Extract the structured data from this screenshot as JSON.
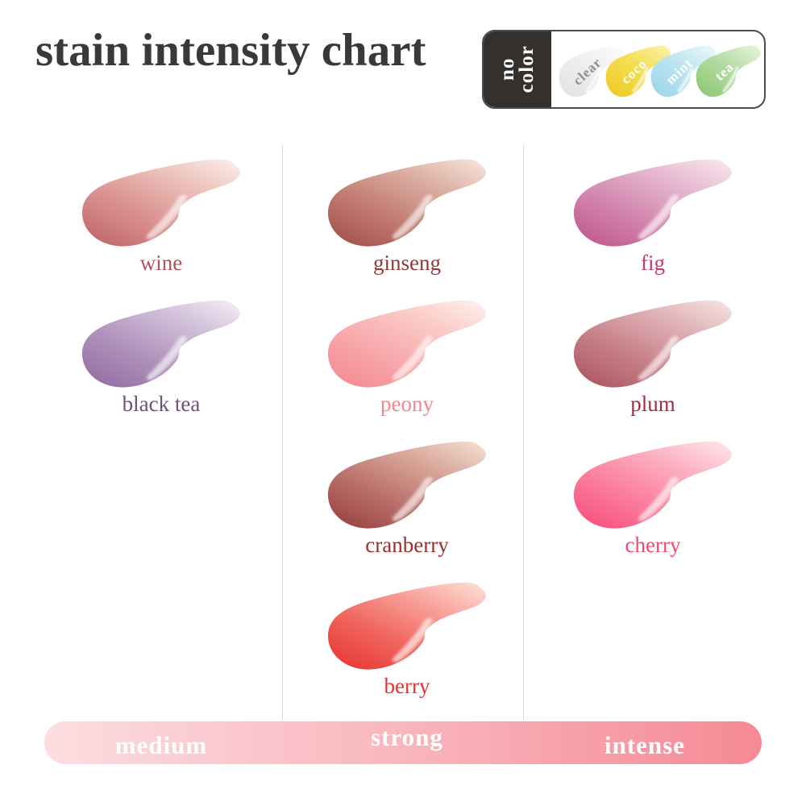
{
  "title": "stain intensity chart",
  "no_color_legend": {
    "tab_lines": [
      "no",
      "color"
    ],
    "tab_bg": "#33302e",
    "swatches": [
      {
        "name": "clear",
        "label_color": "#8f8f8f",
        "deep": "#e2e2e4",
        "mid": "#eeeef0",
        "pale": "#fbfbfc"
      },
      {
        "name": "coco",
        "label_color": "#ffffff",
        "deep": "#eec921",
        "mid": "#f4dd4e",
        "pale": "#faf0a6"
      },
      {
        "name": "mint",
        "label_color": "#ffffff",
        "deep": "#9bd5e9",
        "mid": "#bce4f0",
        "pale": "#e8f7fa"
      },
      {
        "name": "tea",
        "label_color": "#ffffff",
        "deep": "#8cc673",
        "mid": "#b2dba0",
        "pale": "#e3f2d8"
      }
    ]
  },
  "columns": [
    {
      "intensity": "medium",
      "products": [
        {
          "name": "wine",
          "label_color": "#b2525b",
          "deep": "#bd6067",
          "mid": "#d9908f",
          "light": "#edc1ba",
          "pale": "#f8e9e4"
        },
        {
          "name": "black tea",
          "label_color": "#6f4f80",
          "deep": "#8e6a9f",
          "mid": "#ae90ba",
          "light": "#cfbcd8",
          "pale": "#efe8f1"
        }
      ]
    },
    {
      "intensity": "strong",
      "products": [
        {
          "name": "ginseng",
          "label_color": "#8f3b37",
          "deep": "#a04a46",
          "mid": "#c17b73",
          "light": "#dcafa3",
          "pale": "#f3ded3"
        },
        {
          "name": "peony",
          "label_color": "#f2858d",
          "deep": "#f4868f",
          "mid": "#f7a8ab",
          "light": "#fbcac6",
          "pale": "#fdece7"
        },
        {
          "name": "cranberry",
          "label_color": "#9b2e2c",
          "deep": "#963b3b",
          "mid": "#ba716b",
          "light": "#d9a89b",
          "pale": "#f1d9cc"
        },
        {
          "name": "berry",
          "label_color": "#e63430",
          "deep": "#e7322e",
          "mid": "#ef645d",
          "light": "#f8a199",
          "pale": "#fdd8d0"
        }
      ]
    },
    {
      "intensity": "intense",
      "products": [
        {
          "name": "fig",
          "label_color": "#c33a73",
          "deep": "#be5187",
          "mid": "#d286ae",
          "light": "#e6b8d0",
          "pale": "#f6e3ec"
        },
        {
          "name": "plum",
          "label_color": "#9e2f40",
          "deep": "#aa4f5f",
          "mid": "#c68089",
          "light": "#dfb1b5",
          "pale": "#f3dddd"
        },
        {
          "name": "cherry",
          "label_color": "#f04b73",
          "deep": "#f84a78",
          "mid": "#fa7e9c",
          "light": "#fcb1c2",
          "pale": "#fee1e7"
        }
      ]
    }
  ],
  "intensity_bar": {
    "labels": [
      "medium",
      "strong",
      "intense"
    ],
    "gradient": [
      "#fcdde0",
      "#f9bac1",
      "#f58a95"
    ]
  }
}
